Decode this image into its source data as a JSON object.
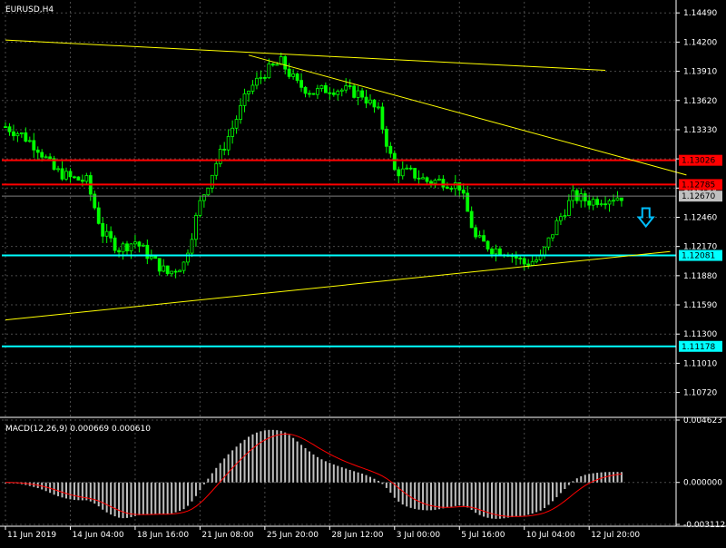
{
  "chart_title": "EURUSD,H4",
  "macd_label": "MACD(12,26,9) 0.000669 0.000610",
  "colors": {
    "background": "#000000",
    "grid": "#4a4a4a",
    "candle": "#00ff00",
    "trendline": "#ffff00",
    "resistance": "#ff0000",
    "support": "#00ffff",
    "histogram": "#c0c0c0",
    "signal": "#ff0000",
    "arrow": "#00bfff",
    "price_tag_bg": "#c0c0c0"
  },
  "chart_data": [
    {
      "type": "candlestick",
      "symbol": "EURUSD",
      "timeframe": "H4",
      "ylim": [
        1.105,
        1.146
      ],
      "price_ticks": [
        "1.14490",
        "1.14200",
        "1.13910",
        "1.13620",
        "1.13330",
        "1.13040",
        "1.12750",
        "1.12460",
        "1.12170",
        "1.11880",
        "1.11590",
        "1.11300",
        "1.11010",
        "1.10720"
      ],
      "price_tick_values": [
        1.1449,
        1.142,
        1.1391,
        1.1362,
        1.1333,
        1.1304,
        1.1275,
        1.1246,
        1.1217,
        1.1188,
        1.1159,
        1.113,
        1.1101,
        1.1072
      ],
      "time_labels": [
        "11 Jun 2019",
        "14 Jun 04:00",
        "18 Jun 16:00",
        "21 Jun 08:00",
        "25 Jun 20:00",
        "28 Jun 12:00",
        "3 Jul 00:00",
        "5 Jul 16:00",
        "10 Jul 04:00",
        "12 Jul 20:00"
      ],
      "close_path": [
        [
          0,
          1.1336
        ],
        [
          4,
          1.1328
        ],
        [
          8,
          1.1315
        ],
        [
          12,
          1.1293
        ],
        [
          16,
          1.1285
        ],
        [
          20,
          1.1282
        ],
        [
          24,
          1.123
        ],
        [
          28,
          1.1215
        ],
        [
          32,
          1.1222
        ],
        [
          36,
          1.1205
        ],
        [
          40,
          1.119
        ],
        [
          44,
          1.12
        ],
        [
          48,
          1.126
        ],
        [
          52,
          1.13
        ],
        [
          56,
          1.1335
        ],
        [
          60,
          1.1372
        ],
        [
          64,
          1.139
        ],
        [
          68,
          1.14
        ],
        [
          72,
          1.1378
        ],
        [
          76,
          1.137
        ],
        [
          80,
          1.1374
        ],
        [
          84,
          1.1372
        ],
        [
          88,
          1.1368
        ],
        [
          92,
          1.135
        ],
        [
          96,
          1.1292
        ],
        [
          100,
          1.129
        ],
        [
          104,
          1.1282
        ],
        [
          108,
          1.1282
        ],
        [
          112,
          1.1277
        ],
        [
          116,
          1.1225
        ],
        [
          120,
          1.1215
        ],
        [
          124,
          1.1212
        ],
        [
          128,
          1.12
        ],
        [
          132,
          1.1205
        ],
        [
          136,
          1.124
        ],
        [
          140,
          1.1267
        ],
        [
          144,
          1.1262
        ],
        [
          148,
          1.1265
        ],
        [
          152,
          1.1267
        ]
      ],
      "horizontal_levels": [
        {
          "value": 1.13026,
          "label": "1.13026",
          "color": "#ff0000"
        },
        {
          "value": 1.12785,
          "label": "1.12785",
          "color": "#ff0000"
        },
        {
          "value": 1.1267,
          "label": "1.12670",
          "color": "#c0c0c0"
        },
        {
          "value": 1.12081,
          "label": "1.12081",
          "color": "#00ffff"
        },
        {
          "value": 1.11178,
          "label": "1.11178",
          "color": "#00ffff"
        }
      ],
      "trendlines": [
        {
          "from": [
            0,
            1.1422
          ],
          "to": [
            148,
            1.1392
          ]
        },
        {
          "from": [
            60,
            1.1407
          ],
          "to": [
            168,
            1.1288
          ]
        },
        {
          "from": [
            0,
            1.1144
          ],
          "to": [
            164,
            1.1212
          ]
        }
      ],
      "grid": true
    },
    {
      "type": "histogram",
      "name": "MACD(12,26,9)",
      "ylim": [
        -0.003112,
        0.004623
      ],
      "ticks": [
        "0.004623",
        "0.000000",
        "-0.003112"
      ],
      "tick_values": [
        0.004623,
        0.0,
        -0.003112
      ],
      "main_value": 0.000669,
      "signal_value": 0.00061,
      "grid": true
    }
  ]
}
